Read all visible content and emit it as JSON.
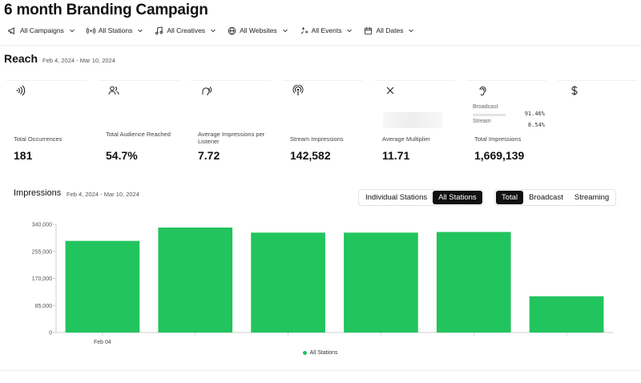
{
  "title": "6 month Branding Campaign",
  "filters": [
    {
      "label": "All Campaigns",
      "icon": "megaphone-icon"
    },
    {
      "label": "All Stations",
      "icon": "broadcast-icon"
    },
    {
      "label": "All Creatives",
      "icon": "music-note-icon"
    },
    {
      "label": "All Websites",
      "icon": "globe-icon"
    },
    {
      "label": "All Events",
      "icon": "sparkle-icon"
    },
    {
      "label": "All Dates",
      "icon": "calendar-icon"
    }
  ],
  "reach": {
    "title": "Reach",
    "date_range": "Feb 4, 2024 - Mar 10, 2024"
  },
  "metrics": [
    {
      "icon": "signal-waves-icon",
      "label": "Total Occurrences",
      "value": "181"
    },
    {
      "icon": "users-icon",
      "label": "Total Audience Reached",
      "value": "54.7%"
    },
    {
      "icon": "listener-head-icon",
      "label": "Average Impressions per Listener",
      "value": "7.72"
    },
    {
      "icon": "podcast-icon",
      "label": "Stream Impressions",
      "value": "142,582"
    },
    {
      "icon": "multiply-icon",
      "label": "Average Multiplier",
      "value": "11.71"
    },
    {
      "icon": "ear-icon",
      "label": "Total Impressions",
      "value": "1,669,139"
    },
    {
      "icon": "dollar-icon",
      "label": "",
      "value": ""
    }
  ],
  "split": [
    {
      "label": "Broadcast",
      "value": "91.46%",
      "fraction": 0.9146
    },
    {
      "label": "Stream",
      "value": "8.54%",
      "fraction": 0.0854
    }
  ],
  "impressions": {
    "title": "Impressions",
    "date_range": "Feb 4, 2024 - Mar 10, 2024",
    "view_toggle": [
      {
        "label": "Individual Stations",
        "active": false
      },
      {
        "label": "All Stations",
        "active": true
      }
    ],
    "type_toggle": [
      {
        "label": "Total",
        "active": true
      },
      {
        "label": "Broadcast",
        "active": false
      },
      {
        "label": "Streaming",
        "active": false
      }
    ]
  },
  "chart_data": {
    "type": "bar",
    "categories": [
      "Feb 04",
      "",
      "",
      "",
      "",
      ""
    ],
    "series": [
      {
        "name": "All Stations",
        "values": [
          288000,
          330000,
          314000,
          314000,
          316000,
          114000
        ],
        "color": "#22c45e"
      }
    ],
    "yticks": [
      0,
      85000,
      170000,
      255000,
      340000
    ],
    "ytick_labels": [
      "0",
      "85,000",
      "170,000",
      "255,000",
      "340,000"
    ],
    "ylim": [
      0,
      340000
    ],
    "legend_position": "bottom-center",
    "grid": false
  }
}
